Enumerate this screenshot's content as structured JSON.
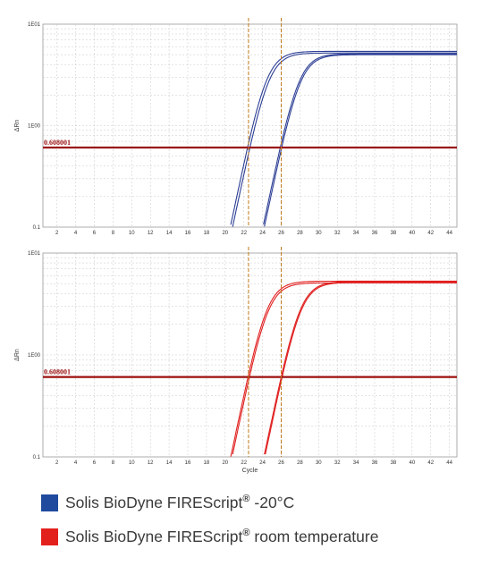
{
  "colors": {
    "frost_series": "#2c3e94",
    "room_temp_series": "#e01e1e",
    "threshold": "#9c1010",
    "ct_marker": "#c07a1a",
    "grid": "#c8c8c8"
  },
  "legend": [
    {
      "brand": "Solis BioDyne FIREScript",
      "mark": "®",
      "suffix": " -20°C",
      "color": "#1f4a9e"
    },
    {
      "brand": "Solis BioDyne FIREScript",
      "mark": "®",
      "suffix": " room temperature",
      "color": "#e3211c"
    }
  ],
  "chart_data": [
    {
      "type": "line",
      "ylabel": "ΔRn",
      "xlabel": "",
      "yscale": "log",
      "ylim": [
        0.1,
        10
      ],
      "ytick_labels": [
        "1E01",
        "1E00",
        "0.1"
      ],
      "xlim": [
        0.5,
        44.8
      ],
      "xticks": [
        2,
        4,
        6,
        8,
        10,
        12,
        14,
        16,
        18,
        20,
        22,
        24,
        26,
        28,
        30,
        32,
        34,
        36,
        38,
        40,
        42,
        44
      ],
      "grid": true,
      "threshold": {
        "value": 0.608001,
        "label": "0.608001"
      },
      "ct_markers": [
        22.5,
        26.0
      ],
      "series": [
        {
          "ct": 22.4,
          "plateau": 5.4
        },
        {
          "ct": 22.65,
          "plateau": 5.2
        },
        {
          "ct": 25.9,
          "plateau": 5.1
        },
        {
          "ct": 26.05,
          "plateau": 5.0
        }
      ],
      "series_color_key": "frost_series"
    },
    {
      "type": "line",
      "ylabel": "ΔRn",
      "xlabel": "Cycle",
      "yscale": "log",
      "ylim": [
        0.1,
        10
      ],
      "ytick_labels": [
        "1E01",
        "1E00",
        "0.1"
      ],
      "xlim": [
        0.5,
        44.8
      ],
      "xticks": [
        2,
        4,
        6,
        8,
        10,
        12,
        14,
        16,
        18,
        20,
        22,
        24,
        26,
        28,
        30,
        32,
        34,
        36,
        38,
        40,
        42,
        44
      ],
      "grid": true,
      "threshold": {
        "value": 0.608001,
        "label": "0.608001"
      },
      "ct_markers": [
        22.5,
        26.0
      ],
      "series": [
        {
          "ct": 22.45,
          "plateau": 5.3
        },
        {
          "ct": 22.6,
          "plateau": 5.1
        },
        {
          "ct": 26.0,
          "plateau": 5.25
        },
        {
          "ct": 26.1,
          "plateau": 5.15
        }
      ],
      "series_color_key": "room_temp_series"
    }
  ]
}
